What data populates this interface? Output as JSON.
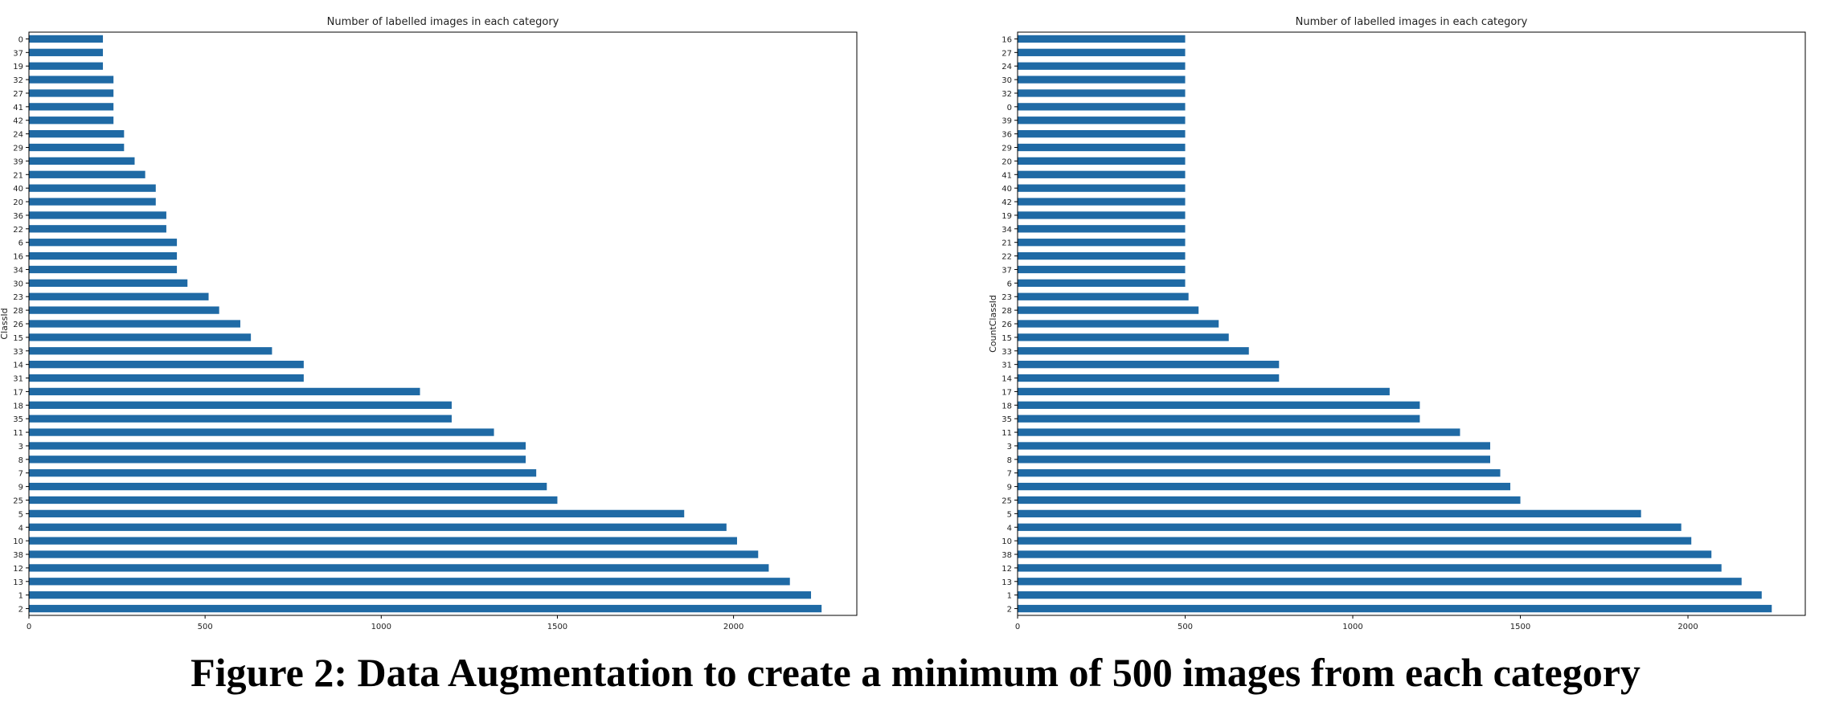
{
  "caption": "Figure 2: Data Augmentation to create a minimum of 500 images from each category",
  "bar_color": "#1f6aa5",
  "chart_data": [
    {
      "type": "bar",
      "orientation": "horizontal",
      "title": "Number of labelled images in each category",
      "ylabel": "ClassId",
      "xlabel": "",
      "xlim": [
        0,
        2350
      ],
      "xticks": [
        0,
        500,
        1000,
        1500,
        2000
      ],
      "grid": false,
      "categories": [
        "0",
        "37",
        "19",
        "32",
        "27",
        "41",
        "42",
        "24",
        "29",
        "39",
        "21",
        "40",
        "20",
        "36",
        "22",
        "6",
        "16",
        "34",
        "30",
        "23",
        "28",
        "26",
        "15",
        "33",
        "14",
        "31",
        "17",
        "18",
        "35",
        "11",
        "3",
        "8",
        "7",
        "9",
        "25",
        "5",
        "4",
        "10",
        "38",
        "12",
        "13",
        "1",
        "2"
      ],
      "values": [
        210,
        210,
        210,
        240,
        240,
        240,
        240,
        270,
        270,
        300,
        330,
        360,
        360,
        390,
        390,
        420,
        420,
        420,
        450,
        510,
        540,
        600,
        630,
        690,
        780,
        780,
        1110,
        1200,
        1200,
        1320,
        1410,
        1410,
        1440,
        1470,
        1500,
        1860,
        1980,
        2010,
        2070,
        2100,
        2160,
        2220,
        2250
      ]
    },
    {
      "type": "bar",
      "orientation": "horizontal",
      "title": "Number of labelled images in each category",
      "ylabel": "CountClassId",
      "xlabel": "",
      "xlim": [
        0,
        2350
      ],
      "xticks": [
        0,
        500,
        1000,
        1500,
        2000
      ],
      "grid": false,
      "categories": [
        "16",
        "27",
        "24",
        "30",
        "32",
        "0",
        "39",
        "36",
        "29",
        "20",
        "41",
        "40",
        "42",
        "19",
        "34",
        "21",
        "22",
        "37",
        "6",
        "23",
        "28",
        "26",
        "15",
        "33",
        "31",
        "14",
        "17",
        "18",
        "35",
        "11",
        "3",
        "8",
        "7",
        "9",
        "25",
        "5",
        "4",
        "10",
        "38",
        "12",
        "13",
        "1",
        "2"
      ],
      "values": [
        500,
        500,
        500,
        500,
        500,
        500,
        500,
        500,
        500,
        500,
        500,
        500,
        500,
        500,
        500,
        500,
        500,
        500,
        500,
        510,
        540,
        600,
        630,
        690,
        780,
        780,
        1110,
        1200,
        1200,
        1320,
        1410,
        1410,
        1440,
        1470,
        1500,
        1860,
        1980,
        2010,
        2070,
        2100,
        2160,
        2220,
        2250
      ]
    }
  ]
}
